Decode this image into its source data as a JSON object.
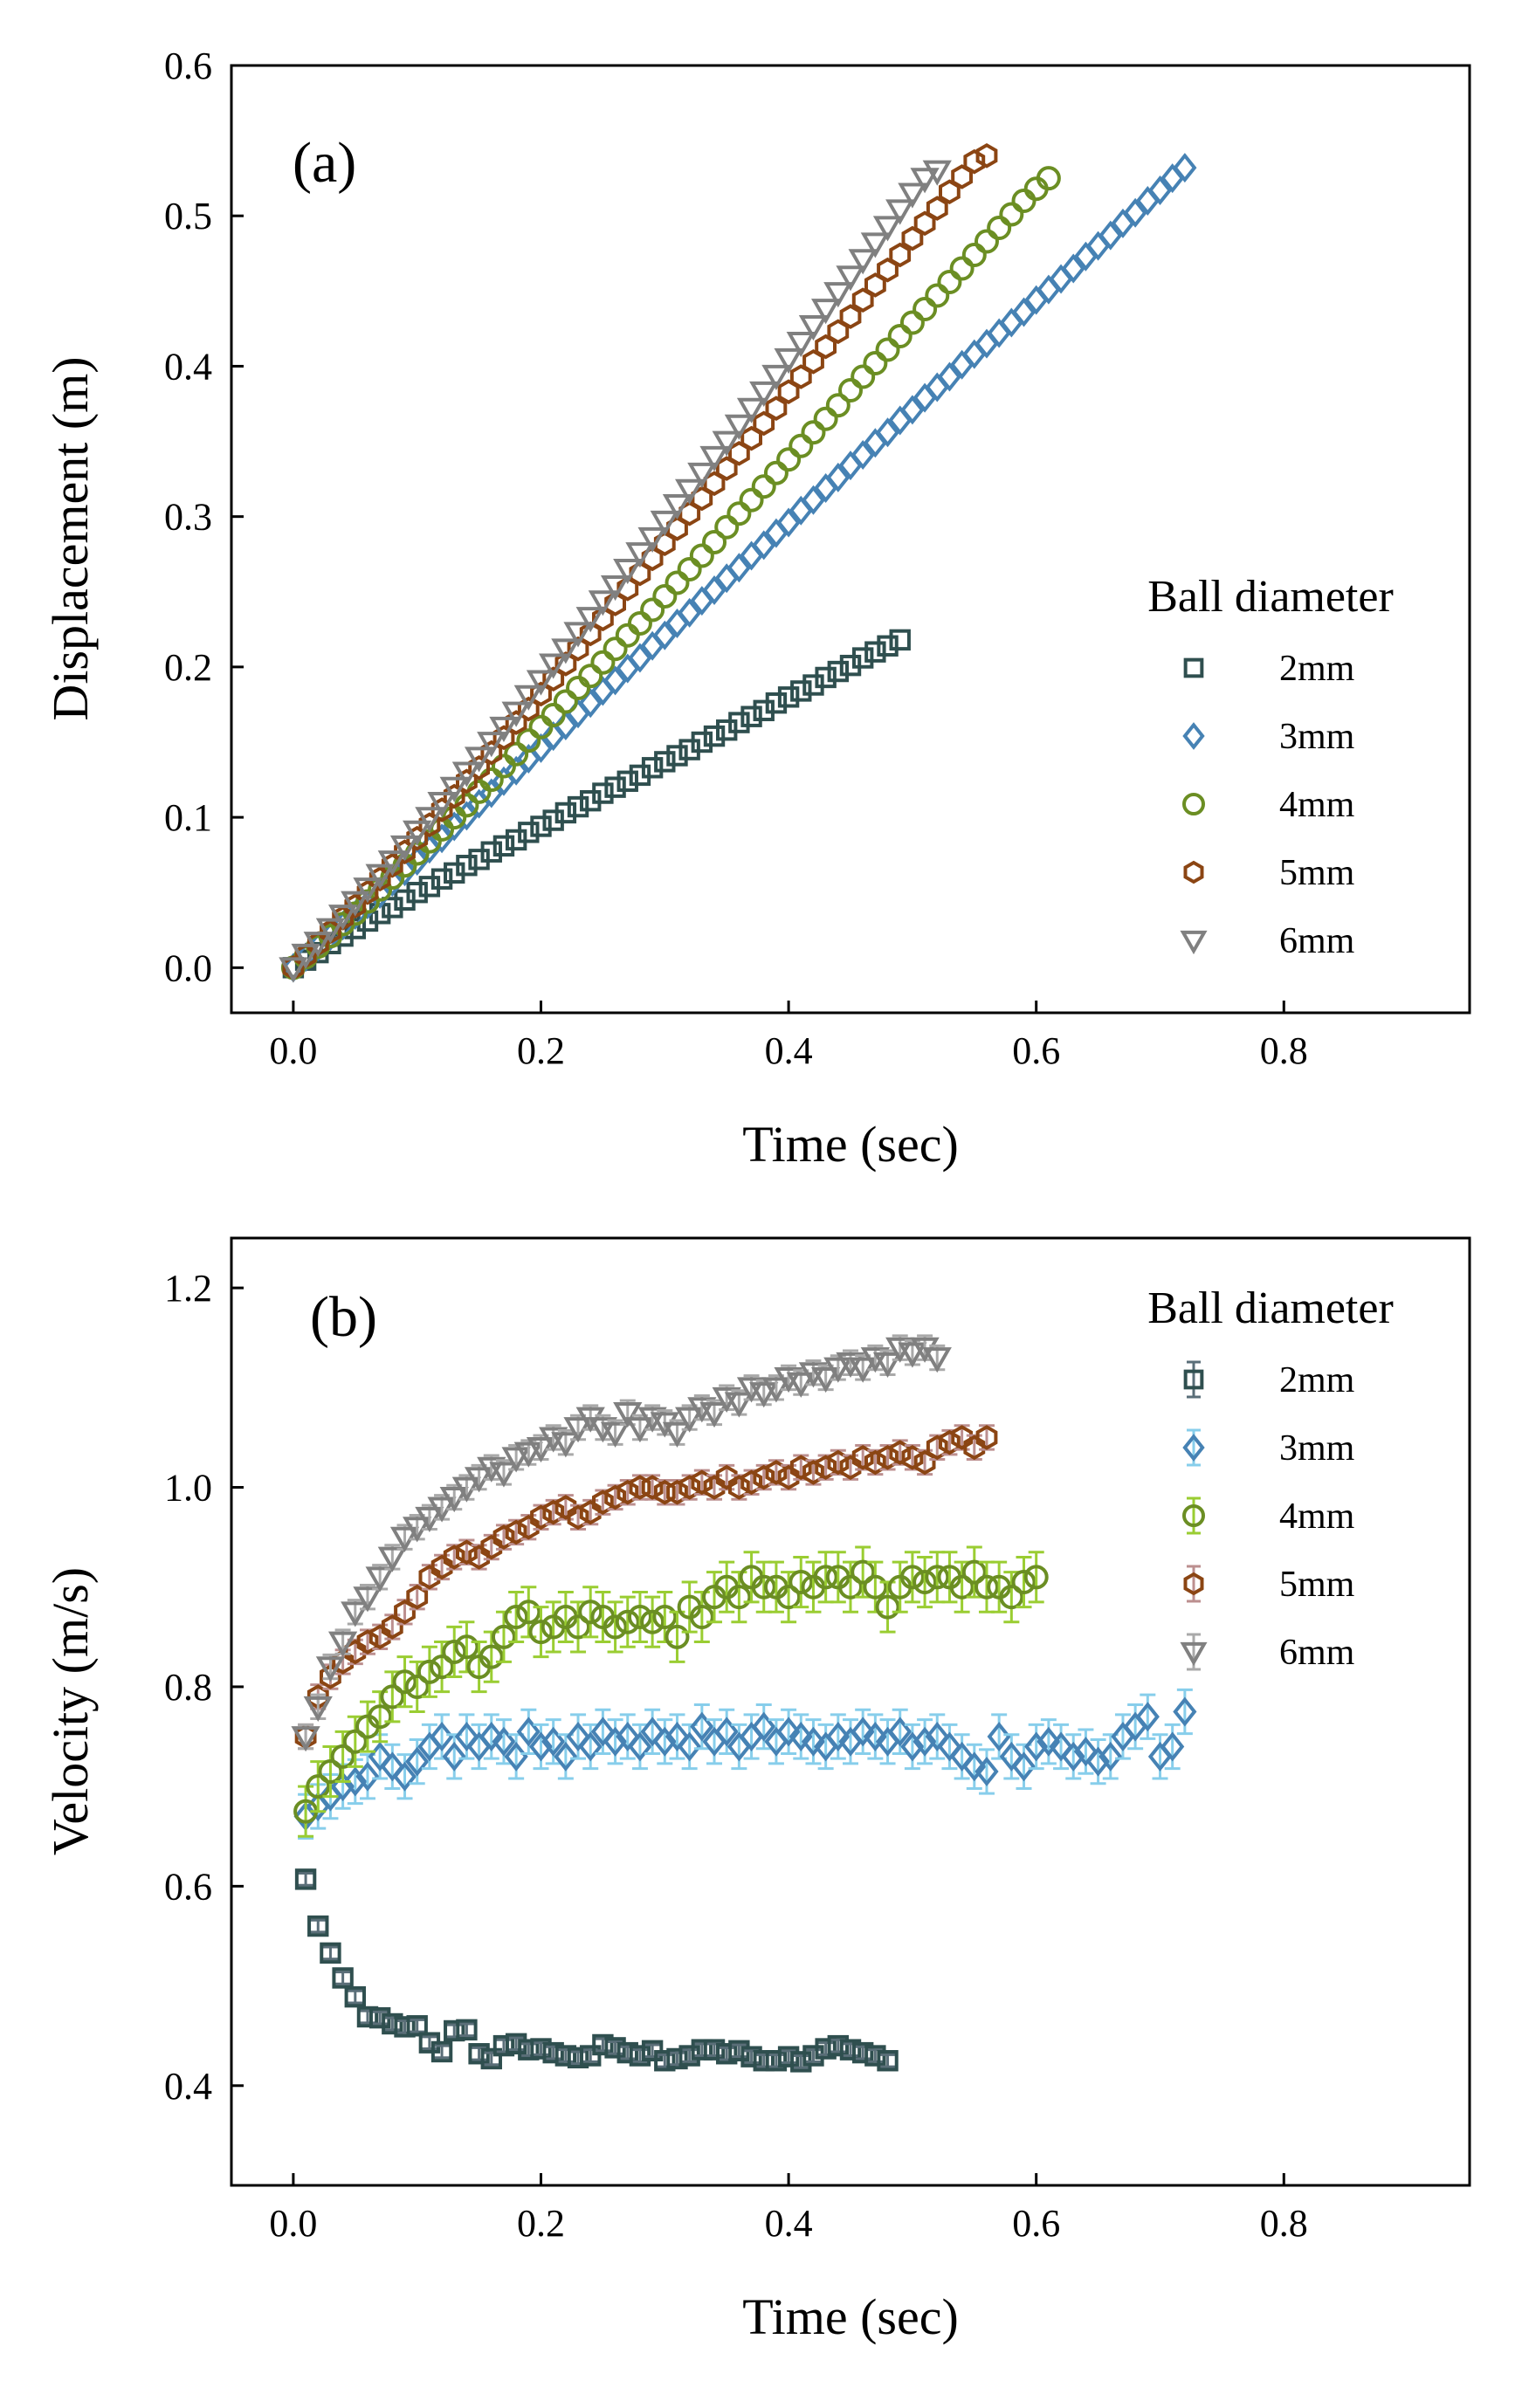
{
  "chart_data": [
    {
      "type": "scatter",
      "panel_label": "(a)",
      "xlabel": "Time (sec)",
      "ylabel": "Displacement (m)",
      "xlim": [
        -0.05,
        0.95
      ],
      "ylim": [
        -0.03,
        0.6
      ],
      "xticks": [
        0.0,
        0.2,
        0.4,
        0.6,
        0.8
      ],
      "xtick_labels": [
        "0.0",
        "0.2",
        "0.4",
        "0.6",
        "0.8"
      ],
      "yticks": [
        0.0,
        0.1,
        0.2,
        0.3,
        0.4,
        0.5,
        0.6
      ],
      "ytick_labels": [
        "0.0",
        "0.1",
        "0.2",
        "0.3",
        "0.4",
        "0.5",
        "0.6"
      ],
      "legend_title": "Ball diameter",
      "legend_position": "right",
      "series": [
        {
          "name": "2mm",
          "marker": "square",
          "color": "#2f4f4f",
          "dt": 0.01,
          "y": [
            0.0,
            0.005,
            0.01,
            0.016,
            0.021,
            0.026,
            0.031,
            0.036,
            0.04,
            0.045,
            0.05,
            0.054,
            0.059,
            0.063,
            0.068,
            0.072,
            0.077,
            0.081,
            0.085,
            0.09,
            0.094,
            0.098,
            0.103,
            0.107,
            0.111,
            0.116,
            0.12,
            0.124,
            0.128,
            0.133,
            0.137,
            0.141,
            0.145,
            0.15,
            0.154,
            0.158,
            0.163,
            0.167,
            0.171,
            0.176,
            0.18,
            0.184,
            0.188,
            0.193,
            0.197,
            0.201,
            0.206,
            0.21,
            0.214,
            0.218
          ]
        },
        {
          "name": "3mm",
          "marker": "diamond",
          "color": "#4682b4",
          "dt": 0.01,
          "y": [
            0.0,
            0.007,
            0.014,
            0.021,
            0.028,
            0.035,
            0.042,
            0.049,
            0.057,
            0.064,
            0.071,
            0.079,
            0.086,
            0.094,
            0.101,
            0.109,
            0.116,
            0.124,
            0.131,
            0.139,
            0.146,
            0.154,
            0.161,
            0.169,
            0.176,
            0.184,
            0.191,
            0.199,
            0.206,
            0.214,
            0.221,
            0.229,
            0.236,
            0.244,
            0.251,
            0.259,
            0.266,
            0.274,
            0.281,
            0.289,
            0.296,
            0.304,
            0.311,
            0.319,
            0.326,
            0.334,
            0.341,
            0.349,
            0.356,
            0.364,
            0.371,
            0.379,
            0.386,
            0.393,
            0.401,
            0.408,
            0.415,
            0.422,
            0.429,
            0.436,
            0.444,
            0.451,
            0.458,
            0.465,
            0.473,
            0.48,
            0.487,
            0.495,
            0.502,
            0.51,
            0.517,
            0.525,
            0.532
          ]
        },
        {
          "name": "4mm",
          "marker": "circle",
          "color": "#6b8e23",
          "dt": 0.01,
          "y": [
            0.0,
            0.007,
            0.014,
            0.021,
            0.029,
            0.036,
            0.044,
            0.052,
            0.06,
            0.068,
            0.076,
            0.084,
            0.092,
            0.1,
            0.108,
            0.117,
            0.125,
            0.134,
            0.142,
            0.151,
            0.16,
            0.168,
            0.177,
            0.186,
            0.194,
            0.203,
            0.212,
            0.221,
            0.229,
            0.238,
            0.247,
            0.256,
            0.265,
            0.274,
            0.283,
            0.293,
            0.302,
            0.311,
            0.32,
            0.329,
            0.338,
            0.347,
            0.356,
            0.365,
            0.374,
            0.384,
            0.393,
            0.402,
            0.411,
            0.42,
            0.429,
            0.438,
            0.447,
            0.456,
            0.465,
            0.474,
            0.483,
            0.492,
            0.501,
            0.51,
            0.518,
            0.525
          ]
        },
        {
          "name": "5mm",
          "marker": "hexagon",
          "color": "#8b4513",
          "dt": 0.01,
          "y": [
            0.0,
            0.008,
            0.016,
            0.024,
            0.033,
            0.041,
            0.05,
            0.059,
            0.068,
            0.077,
            0.086,
            0.095,
            0.105,
            0.114,
            0.124,
            0.133,
            0.143,
            0.153,
            0.163,
            0.172,
            0.182,
            0.192,
            0.202,
            0.212,
            0.222,
            0.232,
            0.242,
            0.252,
            0.262,
            0.272,
            0.282,
            0.292,
            0.302,
            0.312,
            0.322,
            0.332,
            0.342,
            0.352,
            0.362,
            0.372,
            0.383,
            0.393,
            0.403,
            0.413,
            0.423,
            0.433,
            0.444,
            0.454,
            0.464,
            0.474,
            0.485,
            0.495,
            0.505,
            0.516,
            0.526,
            0.536,
            0.54
          ]
        },
        {
          "name": "6mm",
          "marker": "triangle-down",
          "color": "#808080",
          "dt": 0.01,
          "y": [
            0.0,
            0.009,
            0.017,
            0.026,
            0.035,
            0.044,
            0.053,
            0.062,
            0.071,
            0.081,
            0.091,
            0.1,
            0.11,
            0.12,
            0.13,
            0.14,
            0.15,
            0.16,
            0.17,
            0.181,
            0.191,
            0.202,
            0.212,
            0.223,
            0.233,
            0.244,
            0.254,
            0.265,
            0.276,
            0.286,
            0.297,
            0.308,
            0.318,
            0.329,
            0.34,
            0.35,
            0.361,
            0.372,
            0.383,
            0.394,
            0.405,
            0.416,
            0.427,
            0.438,
            0.449,
            0.46,
            0.471,
            0.482,
            0.493,
            0.504,
            0.515,
            0.525,
            0.53
          ]
        }
      ]
    },
    {
      "type": "scatter",
      "panel_label": "(b)",
      "xlabel": "Time (sec)",
      "ylabel": "Velocity (m/s)",
      "xlim": [
        -0.05,
        0.95
      ],
      "ylim": [
        0.3,
        1.25
      ],
      "xticks": [
        0.0,
        0.2,
        0.4,
        0.6,
        0.8
      ],
      "xtick_labels": [
        "0.0",
        "0.2",
        "0.4",
        "0.6",
        "0.8"
      ],
      "yticks": [
        0.4,
        0.6,
        0.8,
        1.0,
        1.2
      ],
      "ytick_labels": [
        "0.4",
        "0.6",
        "0.8",
        "1.0",
        "1.2"
      ],
      "legend_title": "Ball diameter",
      "legend_position": "top-right",
      "series": [
        {
          "name": "2mm",
          "marker": "square",
          "color": "#2f4f4f",
          "err_color": "#5a6e78",
          "err": 0.006,
          "x0": 0.01,
          "dt": 0.01,
          "y": [
            0.607,
            0.56,
            0.533,
            0.508,
            0.489,
            0.469,
            0.468,
            0.462,
            0.459,
            0.46,
            0.443,
            0.434,
            0.455,
            0.456,
            0.432,
            0.427,
            0.44,
            0.442,
            0.436,
            0.437,
            0.433,
            0.43,
            0.428,
            0.43,
            0.441,
            0.438,
            0.433,
            0.43,
            0.435,
            0.425,
            0.427,
            0.43,
            0.436,
            0.436,
            0.432,
            0.435,
            0.429,
            0.425,
            0.425,
            0.429,
            0.424,
            0.43,
            0.437,
            0.44,
            0.436,
            0.433,
            0.43,
            0.425
          ]
        },
        {
          "name": "3mm",
          "marker": "diamond",
          "color": "#4682b4",
          "err_color": "#87ceeb",
          "err": 0.022,
          "x0": 0.01,
          "dt": 0.01,
          "y": [
            0.67,
            0.68,
            0.69,
            0.7,
            0.705,
            0.71,
            0.73,
            0.72,
            0.71,
            0.725,
            0.74,
            0.75,
            0.73,
            0.75,
            0.74,
            0.75,
            0.745,
            0.73,
            0.755,
            0.74,
            0.745,
            0.73,
            0.75,
            0.74,
            0.755,
            0.745,
            0.75,
            0.74,
            0.755,
            0.745,
            0.75,
            0.74,
            0.76,
            0.745,
            0.755,
            0.74,
            0.75,
            0.76,
            0.745,
            0.755,
            0.75,
            0.745,
            0.74,
            0.75,
            0.745,
            0.755,
            0.75,
            0.745,
            0.755,
            0.74,
            0.745,
            0.75,
            0.74,
            0.73,
            0.72,
            0.715,
            0.75,
            0.73,
            0.72,
            0.74,
            0.745,
            0.74,
            0.73,
            0.735,
            0.725,
            0.73,
            0.75,
            0.76,
            0.77,
            0.73,
            0.74,
            0.775
          ]
        },
        {
          "name": "4mm",
          "marker": "circle",
          "color": "#6b8e23",
          "err_color": "#9acd32",
          "err": 0.025,
          "x0": 0.01,
          "dt": 0.01,
          "y": [
            0.675,
            0.7,
            0.715,
            0.73,
            0.745,
            0.76,
            0.77,
            0.79,
            0.805,
            0.8,
            0.815,
            0.82,
            0.835,
            0.84,
            0.82,
            0.83,
            0.85,
            0.87,
            0.875,
            0.855,
            0.86,
            0.87,
            0.86,
            0.875,
            0.87,
            0.86,
            0.865,
            0.87,
            0.865,
            0.87,
            0.85,
            0.88,
            0.87,
            0.89,
            0.9,
            0.89,
            0.91,
            0.9,
            0.9,
            0.89,
            0.905,
            0.9,
            0.91,
            0.91,
            0.9,
            0.915,
            0.9,
            0.88,
            0.9,
            0.91,
            0.905,
            0.91,
            0.91,
            0.9,
            0.915,
            0.9,
            0.9,
            0.89,
            0.905,
            0.91
          ]
        },
        {
          "name": "5mm",
          "marker": "hexagon",
          "color": "#8b4513",
          "err_color": "#bc8f8f",
          "err": 0.012,
          "x0": 0.01,
          "dt": 0.01,
          "y": [
            0.75,
            0.79,
            0.81,
            0.825,
            0.835,
            0.845,
            0.85,
            0.86,
            0.875,
            0.89,
            0.91,
            0.92,
            0.93,
            0.935,
            0.93,
            0.94,
            0.95,
            0.955,
            0.96,
            0.97,
            0.975,
            0.98,
            0.97,
            0.975,
            0.985,
            0.99,
            0.995,
            1.0,
            1.0,
            0.995,
            0.995,
            1.0,
            1.005,
            1.0,
            1.01,
            1.0,
            1.005,
            1.01,
            1.015,
            1.01,
            1.02,
            1.015,
            1.02,
            1.025,
            1.02,
            1.03,
            1.025,
            1.03,
            1.035,
            1.03,
            1.025,
            1.04,
            1.045,
            1.05,
            1.04,
            1.05
          ]
        },
        {
          "name": "6mm",
          "marker": "triangle-down",
          "color": "#808080",
          "err_color": "#a9a9a9",
          "err": 0.012,
          "x0": 0.01,
          "dt": 0.01,
          "y": [
            0.75,
            0.78,
            0.82,
            0.845,
            0.875,
            0.89,
            0.91,
            0.93,
            0.95,
            0.96,
            0.97,
            0.98,
            0.99,
            1.0,
            1.01,
            1.02,
            1.015,
            1.03,
            1.035,
            1.04,
            1.05,
            1.045,
            1.06,
            1.07,
            1.06,
            1.055,
            1.075,
            1.06,
            1.07,
            1.065,
            1.055,
            1.07,
            1.08,
            1.075,
            1.09,
            1.085,
            1.1,
            1.095,
            1.1,
            1.11,
            1.105,
            1.115,
            1.11,
            1.12,
            1.125,
            1.12,
            1.13,
            1.125,
            1.14,
            1.135,
            1.14,
            1.13
          ]
        }
      ]
    }
  ]
}
